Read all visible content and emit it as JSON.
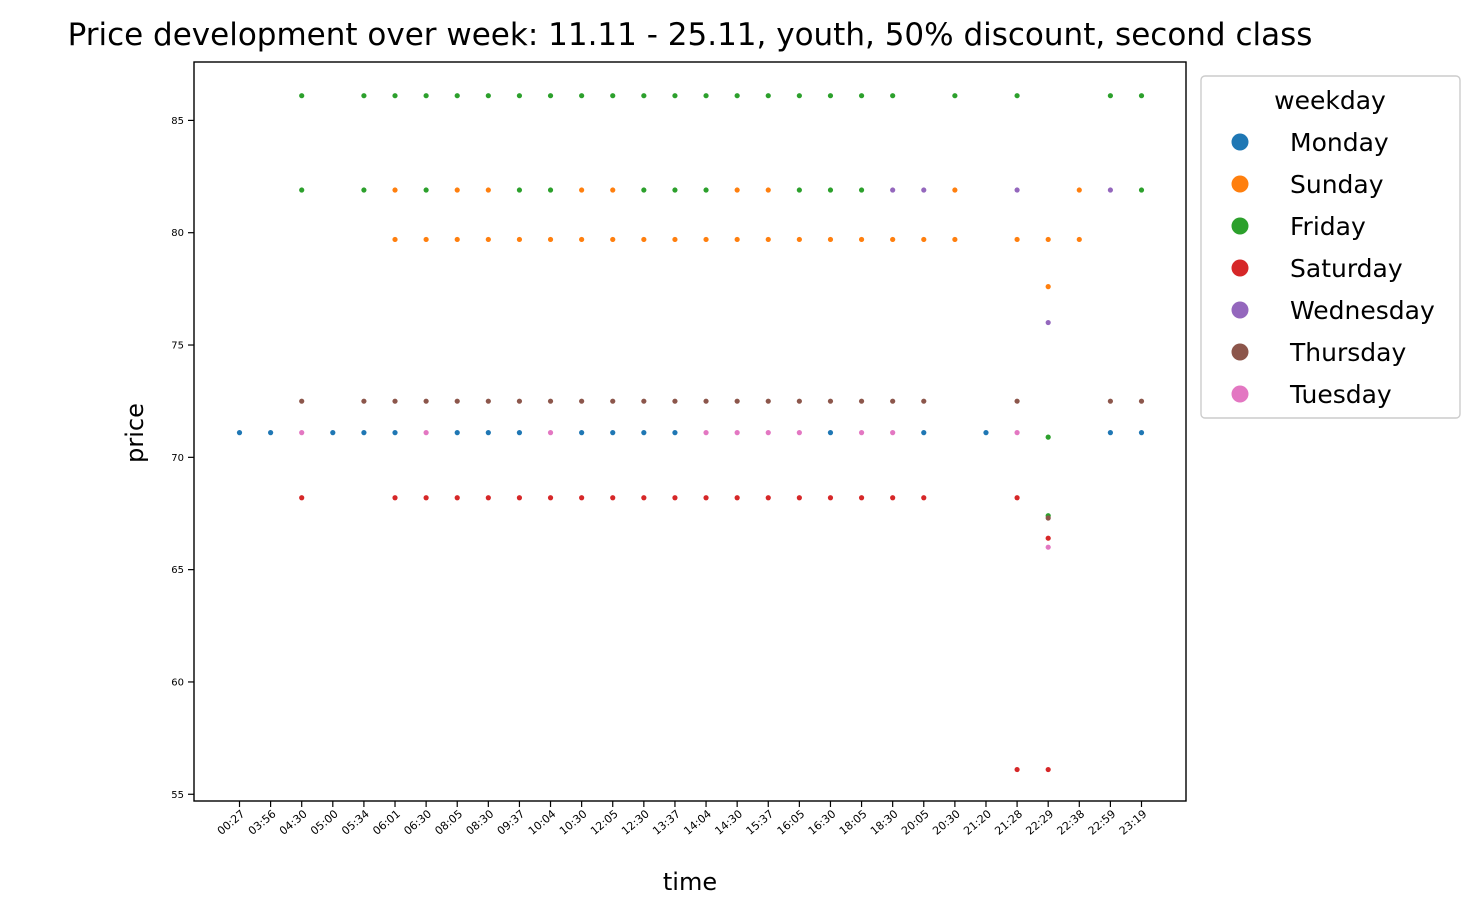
{
  "chart_data": {
    "type": "scatter",
    "title": "Price development over week: 11.11 - 25.11, youth, 50% discount, second class",
    "xlabel": "time",
    "ylabel": "price",
    "ylim": [
      54.7,
      87.6
    ],
    "yticks": [
      55,
      60,
      65,
      70,
      75,
      80,
      85
    ],
    "categories": [
      "00:27",
      "03:56",
      "04:30",
      "05:00",
      "05:34",
      "06:01",
      "06:30",
      "08:05",
      "08:30",
      "09:37",
      "10:04",
      "10:30",
      "12:05",
      "12:30",
      "13:37",
      "14:04",
      "14:30",
      "15:37",
      "16:05",
      "16:30",
      "18:05",
      "18:30",
      "20:05",
      "20:30",
      "21:20",
      "21:28",
      "22:29",
      "22:38",
      "22:59",
      "23:19"
    ],
    "legend": {
      "title": "weekday",
      "placement": "outside-right-top"
    },
    "grid": false,
    "series": [
      {
        "name": "Monday",
        "color": "#1f77b4",
        "points": [
          [
            "00:27",
            71.1
          ],
          [
            "03:56",
            71.1
          ],
          [
            "05:00",
            71.1
          ],
          [
            "05:34",
            71.1
          ],
          [
            "06:01",
            71.1
          ],
          [
            "08:05",
            71.1
          ],
          [
            "08:30",
            71.1
          ],
          [
            "09:37",
            71.1
          ],
          [
            "10:30",
            71.1
          ],
          [
            "12:05",
            71.1
          ],
          [
            "12:30",
            71.1
          ],
          [
            "13:37",
            71.1
          ],
          [
            "16:30",
            71.1
          ],
          [
            "20:05",
            71.1
          ],
          [
            "21:20",
            71.1
          ],
          [
            "22:59",
            71.1
          ],
          [
            "23:19",
            71.1
          ]
        ]
      },
      {
        "name": "Sunday",
        "color": "#ff7f0e",
        "points": [
          [
            "06:01",
            81.9
          ],
          [
            "08:05",
            81.9
          ],
          [
            "08:30",
            81.9
          ],
          [
            "10:30",
            81.9
          ],
          [
            "12:05",
            81.9
          ],
          [
            "14:30",
            81.9
          ],
          [
            "15:37",
            81.9
          ],
          [
            "20:30",
            81.9
          ],
          [
            "22:38",
            81.9
          ],
          [
            "06:01",
            79.7
          ],
          [
            "06:30",
            79.7
          ],
          [
            "08:05",
            79.7
          ],
          [
            "08:30",
            79.7
          ],
          [
            "09:37",
            79.7
          ],
          [
            "10:04",
            79.7
          ],
          [
            "10:30",
            79.7
          ],
          [
            "12:05",
            79.7
          ],
          [
            "12:30",
            79.7
          ],
          [
            "13:37",
            79.7
          ],
          [
            "14:04",
            79.7
          ],
          [
            "14:30",
            79.7
          ],
          [
            "15:37",
            79.7
          ],
          [
            "16:05",
            79.7
          ],
          [
            "16:30",
            79.7
          ],
          [
            "18:05",
            79.7
          ],
          [
            "18:30",
            79.7
          ],
          [
            "20:05",
            79.7
          ],
          [
            "20:30",
            79.7
          ],
          [
            "21:28",
            79.7
          ],
          [
            "22:29",
            79.7
          ],
          [
            "22:38",
            79.7
          ],
          [
            "22:29",
            77.6
          ]
        ]
      },
      {
        "name": "Friday",
        "color": "#2ca02c",
        "points": [
          [
            "04:30",
            86.1
          ],
          [
            "05:34",
            86.1
          ],
          [
            "06:01",
            86.1
          ],
          [
            "06:30",
            86.1
          ],
          [
            "08:05",
            86.1
          ],
          [
            "08:30",
            86.1
          ],
          [
            "09:37",
            86.1
          ],
          [
            "10:04",
            86.1
          ],
          [
            "10:30",
            86.1
          ],
          [
            "12:05",
            86.1
          ],
          [
            "12:30",
            86.1
          ],
          [
            "13:37",
            86.1
          ],
          [
            "14:04",
            86.1
          ],
          [
            "14:30",
            86.1
          ],
          [
            "15:37",
            86.1
          ],
          [
            "16:05",
            86.1
          ],
          [
            "16:30",
            86.1
          ],
          [
            "18:05",
            86.1
          ],
          [
            "18:30",
            86.1
          ],
          [
            "20:30",
            86.1
          ],
          [
            "21:28",
            86.1
          ],
          [
            "22:59",
            86.1
          ],
          [
            "23:19",
            86.1
          ],
          [
            "04:30",
            81.9
          ],
          [
            "05:34",
            81.9
          ],
          [
            "06:30",
            81.9
          ],
          [
            "09:37",
            81.9
          ],
          [
            "10:04",
            81.9
          ],
          [
            "12:30",
            81.9
          ],
          [
            "13:37",
            81.9
          ],
          [
            "14:04",
            81.9
          ],
          [
            "16:05",
            81.9
          ],
          [
            "16:30",
            81.9
          ],
          [
            "18:05",
            81.9
          ],
          [
            "23:19",
            81.9
          ],
          [
            "22:29",
            70.9
          ],
          [
            "22:29",
            67.4
          ]
        ]
      },
      {
        "name": "Saturday",
        "color": "#d62728",
        "points": [
          [
            "04:30",
            68.2
          ],
          [
            "06:01",
            68.2
          ],
          [
            "06:30",
            68.2
          ],
          [
            "08:05",
            68.2
          ],
          [
            "08:30",
            68.2
          ],
          [
            "09:37",
            68.2
          ],
          [
            "10:04",
            68.2
          ],
          [
            "10:30",
            68.2
          ],
          [
            "12:05",
            68.2
          ],
          [
            "12:30",
            68.2
          ],
          [
            "13:37",
            68.2
          ],
          [
            "14:04",
            68.2
          ],
          [
            "14:30",
            68.2
          ],
          [
            "15:37",
            68.2
          ],
          [
            "16:05",
            68.2
          ],
          [
            "16:30",
            68.2
          ],
          [
            "18:05",
            68.2
          ],
          [
            "18:30",
            68.2
          ],
          [
            "20:05",
            68.2
          ],
          [
            "21:28",
            68.2
          ],
          [
            "22:29",
            66.4
          ],
          [
            "21:28",
            56.1
          ],
          [
            "22:29",
            56.1
          ]
        ]
      },
      {
        "name": "Wednesday",
        "color": "#9467bd",
        "points": [
          [
            "18:30",
            81.9
          ],
          [
            "20:05",
            81.9
          ],
          [
            "21:28",
            81.9
          ],
          [
            "22:59",
            81.9
          ],
          [
            "22:29",
            76.0
          ]
        ]
      },
      {
        "name": "Thursday",
        "color": "#8c564b",
        "points": [
          [
            "04:30",
            72.5
          ],
          [
            "05:34",
            72.5
          ],
          [
            "06:01",
            72.5
          ],
          [
            "06:30",
            72.5
          ],
          [
            "08:05",
            72.5
          ],
          [
            "08:30",
            72.5
          ],
          [
            "09:37",
            72.5
          ],
          [
            "10:04",
            72.5
          ],
          [
            "10:30",
            72.5
          ],
          [
            "12:05",
            72.5
          ],
          [
            "12:30",
            72.5
          ],
          [
            "13:37",
            72.5
          ],
          [
            "14:04",
            72.5
          ],
          [
            "14:30",
            72.5
          ],
          [
            "15:37",
            72.5
          ],
          [
            "16:05",
            72.5
          ],
          [
            "16:30",
            72.5
          ],
          [
            "18:05",
            72.5
          ],
          [
            "18:30",
            72.5
          ],
          [
            "20:05",
            72.5
          ],
          [
            "21:28",
            72.5
          ],
          [
            "22:59",
            72.5
          ],
          [
            "23:19",
            72.5
          ],
          [
            "22:29",
            67.3
          ]
        ]
      },
      {
        "name": "Tuesday",
        "color": "#e377c2",
        "points": [
          [
            "04:30",
            71.1
          ],
          [
            "06:30",
            71.1
          ],
          [
            "10:04",
            71.1
          ],
          [
            "14:04",
            71.1
          ],
          [
            "14:30",
            71.1
          ],
          [
            "15:37",
            71.1
          ],
          [
            "16:05",
            71.1
          ],
          [
            "18:05",
            71.1
          ],
          [
            "18:30",
            71.1
          ],
          [
            "21:28",
            71.1
          ],
          [
            "22:29",
            66.0
          ]
        ]
      }
    ]
  }
}
